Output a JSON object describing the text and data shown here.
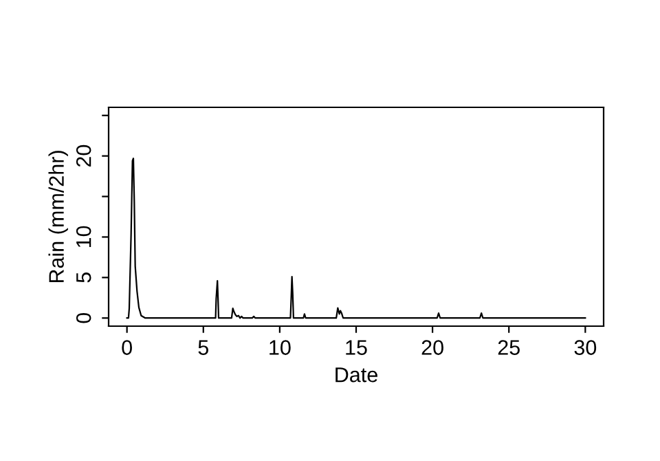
{
  "chart_data": {
    "type": "line",
    "xlabel": "Date",
    "ylabel": "Rain (mm/2hr)",
    "x": [
      0,
      0.1,
      0.15,
      0.27,
      0.36,
      0.42,
      0.48,
      0.54,
      0.66,
      0.78,
      0.93,
      1.2,
      5.8,
      5.84,
      5.92,
      5.96,
      6.0,
      6.85,
      6.93,
      7.0,
      7.1,
      7.2,
      7.3,
      7.4,
      7.5,
      7.6,
      8.2,
      8.3,
      8.4,
      10.7,
      10.75,
      10.8,
      10.85,
      10.9,
      11.55,
      11.62,
      11.7,
      13.7,
      13.8,
      13.9,
      13.97,
      14.05,
      14.15,
      14.25,
      20.3,
      20.4,
      20.5,
      23.1,
      23.2,
      23.3,
      30
    ],
    "values": [
      0,
      0,
      1.2,
      10.3,
      19.4,
      19.7,
      14.3,
      6.4,
      3.3,
      1.3,
      0.3,
      0,
      0,
      2.4,
      4.6,
      2.5,
      0,
      0,
      1.2,
      0.8,
      0.4,
      0.2,
      0.3,
      0,
      0.2,
      0,
      0,
      0.2,
      0,
      0,
      2.4,
      5.1,
      3,
      0,
      0,
      0.5,
      0,
      0,
      1.25,
      0.5,
      0.9,
      0.6,
      0,
      0,
      0,
      0.6,
      0,
      0,
      0.6,
      0,
      0
    ],
    "color": "#000000",
    "xlim": [
      -1.2,
      31.2
    ],
    "ylim": [
      -1,
      26
    ],
    "xticks": [
      0,
      5,
      10,
      15,
      20,
      25,
      30
    ],
    "yticks": [
      0,
      5,
      10,
      {
        "value": 15,
        "label": null
      },
      20,
      {
        "value": 25,
        "label": null
      }
    ],
    "grid": false,
    "legend": false,
    "marker": "none",
    "line_style": "solid"
  }
}
